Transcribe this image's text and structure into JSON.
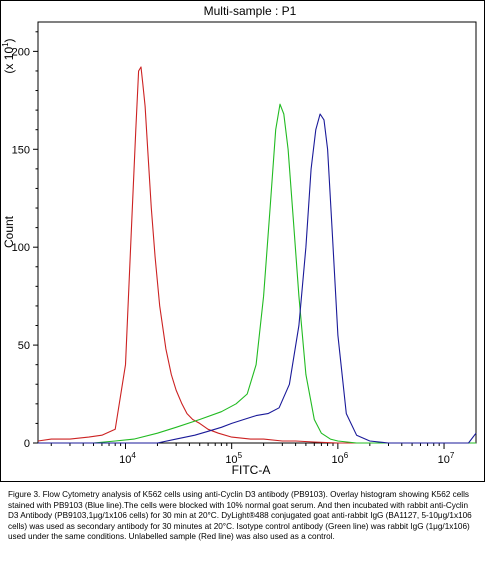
{
  "chart_data": {
    "type": "line",
    "title": "Multi-sample : P1",
    "xlabel": "FITC-A",
    "ylabel": "Count",
    "y_multiplier": "(x 10",
    "y_multiplier_exp": "1",
    "y_multiplier_close": ")",
    "x_scale": "log",
    "xlim": [
      1500,
      20000000
    ],
    "ylim": [
      0,
      215
    ],
    "grid": false,
    "legend": "none",
    "x_ticks": [
      {
        "value": 10000,
        "base": "10",
        "exp": "4"
      },
      {
        "value": 100000,
        "base": "10",
        "exp": "5"
      },
      {
        "value": 1000000,
        "base": "10",
        "exp": "6"
      },
      {
        "value": 10000000,
        "base": "10",
        "exp": "7"
      }
    ],
    "y_ticks": [
      {
        "value": 0,
        "label": "0"
      },
      {
        "value": 50,
        "label": "50"
      },
      {
        "value": 100,
        "label": "100"
      },
      {
        "value": 150,
        "label": "150"
      },
      {
        "value": 200,
        "label": "200"
      }
    ],
    "series": [
      {
        "color": "#cc2222",
        "x": [
          1500,
          2000,
          3000,
          4500,
          6000,
          8000,
          10000,
          11500,
          12500,
          13300,
          14000,
          14600,
          15300,
          16200,
          17500,
          19000,
          21000,
          24000,
          27000,
          30000,
          34000,
          38000,
          43000,
          50000,
          60000,
          75000,
          100000,
          150000,
          200000,
          300000,
          400000,
          600000,
          1000000,
          2000000,
          5000000,
          20000000
        ],
        "y": [
          1,
          2,
          2,
          3,
          4,
          7,
          40,
          115,
          160,
          190,
          192,
          183,
          172,
          150,
          120,
          95,
          70,
          48,
          35,
          27,
          20,
          15,
          12,
          10,
          7,
          5,
          3,
          2,
          2,
          1,
          1,
          0.5,
          0,
          0,
          0,
          0
        ]
      },
      {
        "color": "#22bb22",
        "x": [
          1500,
          5000,
          8000,
          12000,
          20000,
          30000,
          50000,
          80000,
          110000,
          140000,
          170000,
          200000,
          230000,
          260000,
          285000,
          310000,
          340000,
          380000,
          430000,
          500000,
          600000,
          700000,
          850000,
          1000000,
          1500000,
          3000000,
          20000000
        ],
        "y": [
          0,
          0,
          1,
          2,
          5,
          8,
          12,
          16,
          20,
          25,
          40,
          75,
          120,
          160,
          173,
          168,
          150,
          115,
          75,
          35,
          12,
          5,
          2,
          1,
          0,
          0,
          0
        ]
      },
      {
        "color": "#1a1a99",
        "x": [
          1500,
          10000,
          20000,
          30000,
          45000,
          60000,
          80000,
          100000,
          130000,
          170000,
          220000,
          280000,
          350000,
          430000,
          500000,
          560000,
          620000,
          680000,
          740000,
          800000,
          880000,
          1000000,
          1200000,
          1500000,
          2000000,
          3000000,
          5000000,
          10000000,
          17000000,
          20000000
        ],
        "y": [
          0,
          0,
          0,
          2,
          4,
          6,
          8,
          10,
          12,
          14,
          15,
          18,
          30,
          60,
          100,
          140,
          160,
          168,
          165,
          150,
          110,
          55,
          15,
          4,
          1,
          0,
          0,
          0,
          0,
          5
        ]
      }
    ]
  },
  "caption": "Figure 3. Flow Cytometry analysis of K562 cells using anti-Cyclin D3 antibody (PB9103). Overlay histogram showing K562 cells stained with PB9103 (Blue line).The cells were blocked with 10% normal goat serum. And then incubated with rabbit anti-Cyclin D3 Antibody (PB9103,1μg/1x106 cells) for 30 min at 20°C. DyLight®488 conjugated goat anti-rabbit IgG (BA1127, 5-10μg/1x106 cells) was used as secondary antibody for 30 minutes at 20°C. Isotype control antibody (Green line) was rabbit IgG (1μg/1x106) used under the same conditions. Unlabelled sample (Red line) was also used as a control."
}
